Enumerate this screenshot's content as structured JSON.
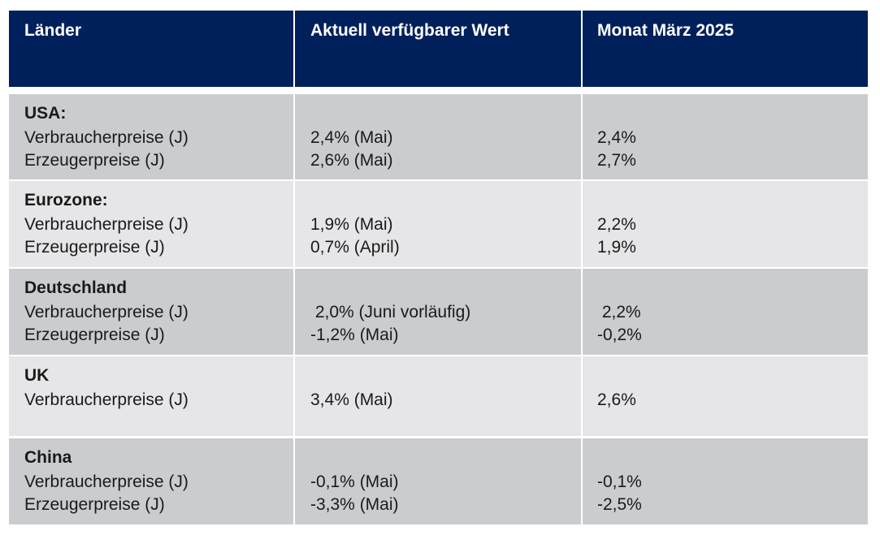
{
  "header": [
    "Länder",
    "Aktuell verfügbarer Wert",
    "Monat März 2025"
  ],
  "rows": [
    {
      "country": "USA:",
      "indicators": [
        "Verbraucherpreise (J)",
        "Erzeugerpreise (J)"
      ],
      "current": [
        "2,4% (Mai)",
        "2,6% (Mai)"
      ],
      "march": [
        "2,4%",
        "2,7%"
      ]
    },
    {
      "country": "Eurozone:",
      "indicators": [
        "Verbraucherpreise (J)",
        "Erzeugerpreise (J)"
      ],
      "current": [
        "1,9% (Mai)",
        "0,7% (April)"
      ],
      "march": [
        "2,2%",
        "1,9%"
      ]
    },
    {
      "country": "Deutschland",
      "indicators": [
        "Verbraucherpreise (J)",
        "Erzeugerpreise (J)"
      ],
      "current": [
        " 2,0% (Juni vorläufig)",
        "-1,2% (Mai)"
      ],
      "march": [
        " 2,2%",
        "-0,2%"
      ]
    },
    {
      "country": "UK",
      "indicators": [
        "Verbraucherpreise (J)"
      ],
      "current": [
        "3,4% (Mai)"
      ],
      "march": [
        "2,6%"
      ]
    },
    {
      "country": "China",
      "indicators": [
        "Verbraucherpreise (J)",
        "Erzeugerpreise (J)"
      ],
      "current": [
        "-0,1% (Mai)",
        "-3,3% (Mai)"
      ],
      "march": [
        "-0,1%",
        "-2,5%"
      ]
    }
  ]
}
